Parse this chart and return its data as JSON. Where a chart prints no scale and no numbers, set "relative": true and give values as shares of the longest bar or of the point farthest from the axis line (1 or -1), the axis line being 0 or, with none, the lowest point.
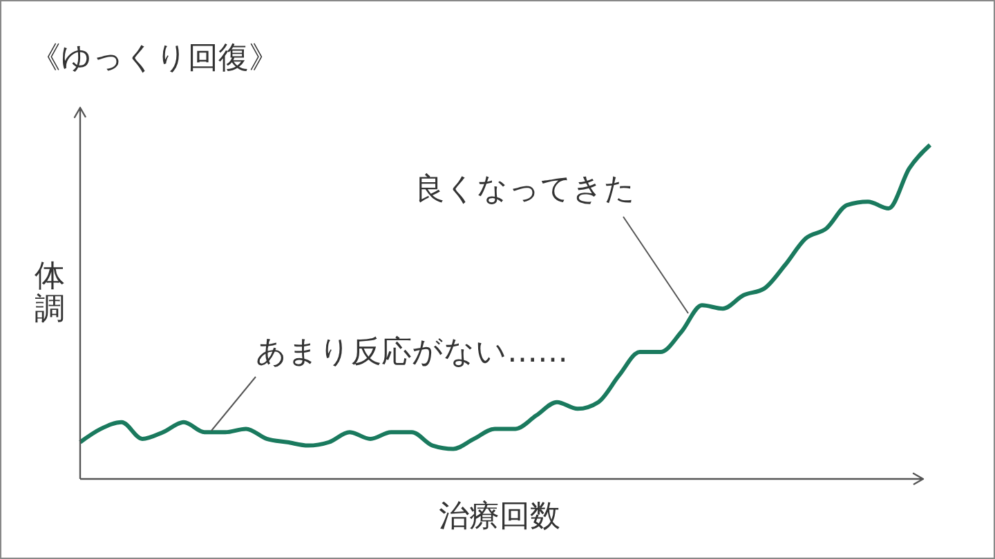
{
  "chart_data": {
    "type": "line",
    "title": "《ゆっくり回復》",
    "xlabel": "治療回数",
    "ylabel": "体調",
    "relative": true,
    "grid": false,
    "marker": "none",
    "line_style": "solid",
    "categories": [
      null,
      null,
      null,
      null,
      null,
      null,
      null,
      null,
      null,
      null,
      null,
      null,
      null,
      null,
      null,
      null,
      null,
      null,
      null,
      null,
      null,
      null,
      null,
      null,
      null,
      null,
      null,
      null,
      null,
      null,
      null,
      null,
      null,
      null,
      null,
      null,
      null,
      null,
      null,
      null,
      null,
      null
    ],
    "series": [
      {
        "color": "#1a7a5e",
        "values": [
          0.11,
          0.15,
          0.17,
          0.12,
          0.14,
          0.17,
          0.14,
          0.14,
          0.15,
          0.12,
          0.11,
          0.1,
          0.11,
          0.14,
          0.12,
          0.14,
          0.14,
          0.1,
          0.09,
          0.12,
          0.15,
          0.15,
          0.19,
          0.23,
          0.21,
          0.23,
          0.31,
          0.38,
          0.38,
          0.44,
          0.52,
          0.51,
          0.55,
          0.57,
          0.64,
          0.72,
          0.75,
          0.82,
          0.83,
          0.81,
          0.93,
          1.0
        ]
      }
    ],
    "annotations": [
      "あまり反応がない……",
      "良くなってきた"
    ]
  }
}
